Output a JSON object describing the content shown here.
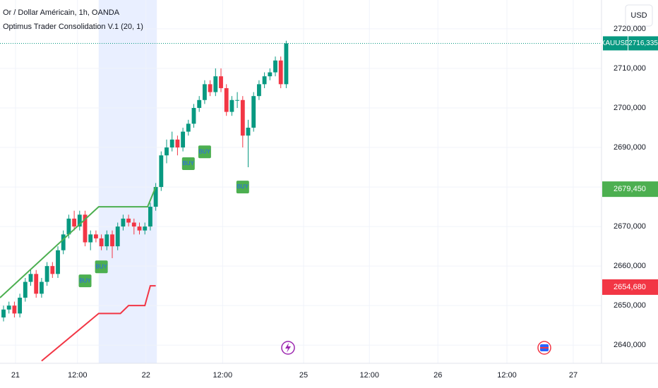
{
  "chart_data": {
    "type": "candlestick",
    "title": "Or / Dollar Américain, 1h, OANDA",
    "subtitle": "Optimus Trader Consolidation V.1 (20, 1)",
    "currency": "USD",
    "symbol": "XAUUSD",
    "up_color": "#089981",
    "down_color": "#f23645",
    "grid": true,
    "ylim": [
      2635.4,
      2727.3
    ],
    "yticks": [
      {
        "value": 2640,
        "label": "2640,000"
      },
      {
        "value": 2650,
        "label": "2650,000"
      },
      {
        "value": 2660,
        "label": "2660,000"
      },
      {
        "value": 2670,
        "label": "2670,000"
      },
      {
        "value": 2680,
        "label": "2680,000"
      },
      {
        "value": 2690,
        "label": "2690,000"
      },
      {
        "value": 2700,
        "label": "2700,000"
      },
      {
        "value": 2710,
        "label": "2710,000"
      },
      {
        "value": 2720,
        "label": "2720,000"
      }
    ],
    "xlim": [
      -0.65,
      110
    ],
    "xticks": [
      {
        "value": 2.2,
        "label": "21"
      },
      {
        "value": 13.6,
        "label": "12:00"
      },
      {
        "value": 26.2,
        "label": "22"
      },
      {
        "value": 40.3,
        "label": "12:00"
      },
      {
        "value": 55.2,
        "label": "25"
      },
      {
        "value": 67.3,
        "label": "12:00"
      },
      {
        "value": 79.9,
        "label": "26"
      },
      {
        "value": 92.6,
        "label": "12:00"
      },
      {
        "value": 104.8,
        "label": "27"
      }
    ],
    "highlight": [
      17.5,
      28.2
    ],
    "open": [
      2647,
      2649,
      2650,
      2648,
      2652,
      2656,
      2658,
      2653,
      2656,
      2660,
      2658,
      2664,
      2668,
      2672,
      2670,
      2673,
      2666,
      2668,
      2667,
      2665,
      2668,
      2665,
      2670,
      2672,
      2671,
      2670,
      2669,
      2670,
      2675,
      2680,
      2688,
      2690,
      2692,
      2690,
      2694,
      2696,
      2700,
      2702,
      2706,
      2704,
      2708,
      2705,
      2699,
      2702,
      2702,
      2693,
      2695,
      2703,
      2706,
      2708,
      2709,
      2712,
      2706
    ],
    "high": [
      2650,
      2651,
      2651,
      2653,
      2657,
      2659,
      2659,
      2657,
      2661,
      2661,
      2665,
      2669,
      2673,
      2674,
      2674,
      2674,
      2669,
      2669,
      2668,
      2669,
      2669,
      2671,
      2673,
      2673,
      2672,
      2671,
      2671,
      2676,
      2681,
      2689,
      2692,
      2694,
      2693,
      2695,
      2697,
      2701,
      2703,
      2707,
      2707,
      2710,
      2710,
      2706,
      2703,
      2704,
      2703,
      2697,
      2704,
      2707,
      2709,
      2710,
      2713,
      2713,
      2717
    ],
    "low": [
      2646,
      2648,
      2647,
      2647,
      2651,
      2655,
      2652,
      2652,
      2655,
      2657,
      2657,
      2663,
      2667,
      2669,
      2669,
      2665,
      2664,
      2666,
      2664,
      2664,
      2662,
      2664,
      2669,
      2670,
      2668,
      2668,
      2668,
      2669,
      2674,
      2679,
      2686,
      2689,
      2688,
      2689,
      2693,
      2695,
      2699,
      2701,
      2703,
      2703,
      2704,
      2698,
      2698,
      2700,
      2690,
      2685,
      2694,
      2702,
      2705,
      2707,
      2708,
      2705,
      2705
    ],
    "close": [
      2649,
      2650,
      2648,
      2652,
      2656,
      2658,
      2653,
      2656,
      2660,
      2658,
      2664,
      2668,
      2672,
      2670,
      2673,
      2666,
      2668,
      2667,
      2665,
      2668,
      2665,
      2670,
      2672,
      2671,
      2670,
      2669,
      2670,
      2675,
      2680,
      2688,
      2690,
      2692,
      2690,
      2694,
      2696,
      2700,
      2702,
      2706,
      2704,
      2708,
      2705,
      2699,
      2702,
      2702,
      2693,
      2695,
      2703,
      2706,
      2708,
      2709,
      2712,
      2706,
      2716.335
    ],
    "lines": [
      {
        "color": "#4caf50",
        "x": [
          -0.65,
          17.5,
          26.5,
          28
        ],
        "values": [
          2652,
          2675,
          2675,
          2680
        ]
      },
      {
        "color": "#f23645",
        "x": [
          7,
          17.5,
          21.5,
          23,
          26,
          27,
          28
        ],
        "values": [
          2636,
          2648,
          2648,
          2650,
          2650,
          2655,
          2655
        ]
      }
    ],
    "annotations": [
      {
        "index": 15,
        "value": 2656.25,
        "text": "BUY"
      },
      {
        "index": 18,
        "value": 2659.8,
        "text": "BUY"
      },
      {
        "index": 34,
        "value": 2685.9,
        "text": "BUY"
      },
      {
        "index": 37,
        "value": 2688.9,
        "text": "BUY"
      },
      {
        "index": 44,
        "value": 2680,
        "text": "BUY"
      }
    ],
    "price_labels": [
      {
        "value": 2716.335,
        "label": "2716,335",
        "color": "#089981"
      },
      {
        "value": 2679.45,
        "label": "2679,450",
        "color": "#4caf50"
      },
      {
        "value": 2654.68,
        "label": "2654,680",
        "color": "#f23645"
      }
    ]
  }
}
